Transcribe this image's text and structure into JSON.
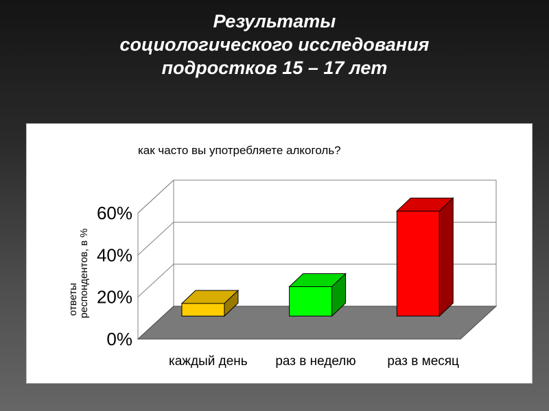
{
  "slide": {
    "title_lines": [
      "Результаты",
      "социологического исследования",
      "подростков 15 – 17 лет"
    ]
  },
  "chart_data": {
    "type": "bar",
    "style": "3d",
    "title": "как часто вы употребляете алкоголь?",
    "ylabel_lines": [
      "ответы",
      "респондентов, в %"
    ],
    "xlabel": "",
    "categories": [
      "каждый день",
      "раз в неделю",
      "раз в месяц"
    ],
    "values": [
      6,
      14,
      50
    ],
    "value_unit": "%",
    "ylim": [
      0,
      60
    ],
    "yticks": [
      0,
      20,
      40,
      60
    ],
    "ytick_labels": [
      "0%",
      "20%",
      "40%",
      "60%"
    ],
    "bar_colors": [
      "#FFCC00",
      "#00FF00",
      "#FF0000"
    ],
    "grid": true,
    "legend": "none"
  }
}
